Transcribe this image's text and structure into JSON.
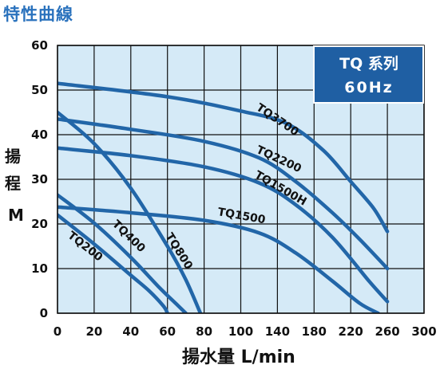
{
  "header": {
    "title": "特性曲線"
  },
  "chart_data": {
    "type": "line",
    "title": "",
    "xlabel": "揚水量 L/min",
    "ylabel_chars": [
      "揚",
      "程",
      "M"
    ],
    "xlim": [
      0,
      300
    ],
    "ylim": [
      0,
      60
    ],
    "x_ticks": [
      0,
      20,
      40,
      60,
      80,
      100,
      140,
      180,
      220,
      260,
      300
    ],
    "x_tick_labels": [
      "0",
      "20",
      "40",
      "60",
      "80",
      "100",
      "140",
      "180",
      "220",
      "260",
      "300"
    ],
    "y_ticks": [
      0,
      10,
      20,
      30,
      40,
      50,
      60
    ],
    "y_tick_labels": [
      "0",
      "10",
      "20",
      "30",
      "40",
      "50",
      "60"
    ],
    "grid": true,
    "legend_box": {
      "line1": "TQ 系列",
      "line2": "60Hz",
      "placement": "top-right"
    },
    "colors": {
      "curve": "#2266a8",
      "plot_bg": "#d5eaf7",
      "grid": "#111111",
      "legend_bg": "#1f5fa3",
      "title": "#2a72bd"
    },
    "series": [
      {
        "name": "TQ3700",
        "x": [
          0,
          60,
          100,
          150,
          190,
          220,
          245,
          260
        ],
        "y": [
          51.5,
          48.5,
          45.3,
          42.5,
          36.5,
          29.5,
          23.5,
          18.3
        ]
      },
      {
        "name": "TQ2200",
        "x": [
          0,
          40,
          80,
          120,
          160,
          200,
          230,
          260
        ],
        "y": [
          43.5,
          41.2,
          38.5,
          34.8,
          29.5,
          22.5,
          16.5,
          10
        ]
      },
      {
        "name": "TQ1500H",
        "x": [
          0,
          40,
          80,
          120,
          160,
          200,
          240,
          260
        ],
        "y": [
          37,
          35.3,
          32.8,
          29.2,
          24.3,
          17,
          7.2,
          2.6
        ]
      },
      {
        "name": "TQ1500",
        "x": [
          0,
          40,
          80,
          120,
          160,
          200,
          230,
          250
        ],
        "y": [
          23.8,
          22.5,
          20.8,
          18,
          13.5,
          7.2,
          2.2,
          0
        ]
      },
      {
        "name": "TQ800",
        "x": [
          0,
          20,
          40,
          60,
          70,
          78
        ],
        "y": [
          45,
          38,
          28,
          15,
          7.5,
          0
        ]
      },
      {
        "name": "TQ400",
        "x": [
          0,
          20,
          40,
          55,
          65,
          70
        ],
        "y": [
          26.5,
          20.2,
          12.5,
          6,
          2,
          0
        ]
      },
      {
        "name": "TQ200",
        "x": [
          0,
          20,
          40,
          50,
          58,
          60
        ],
        "y": [
          22,
          15.5,
          8.5,
          5,
          1.5,
          0
        ]
      }
    ],
    "curve_labels": [
      {
        "series": "TQ3700",
        "text": "TQ3700"
      },
      {
        "series": "TQ2200",
        "text": "TQ2200"
      },
      {
        "series": "TQ1500H",
        "text": "TQ1500H"
      },
      {
        "series": "TQ1500",
        "text": "TQ1500"
      },
      {
        "series": "TQ800",
        "text": "TQ800"
      },
      {
        "series": "TQ400",
        "text": "TQ400"
      },
      {
        "series": "TQ200",
        "text": "TQ200"
      }
    ]
  }
}
